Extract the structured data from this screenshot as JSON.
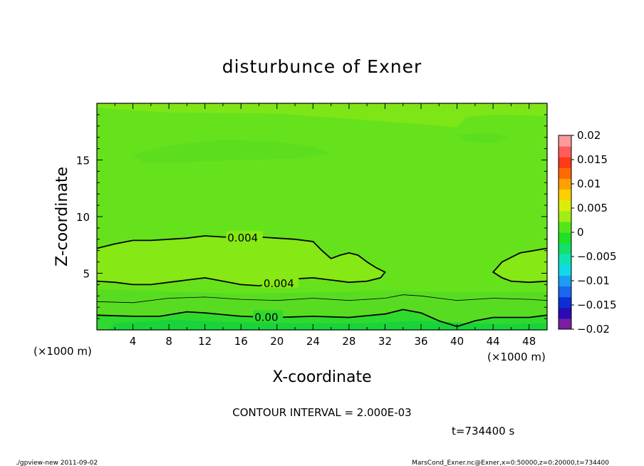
{
  "chart_data": {
    "type": "heatmap",
    "title": "disturbunce of Exner",
    "xlabel": "X-coordinate",
    "ylabel": "Z-coordinate",
    "x_unit": "(×1000 m)",
    "y_unit": "(×1000 m)",
    "xlim": [
      0,
      50
    ],
    "ylim": [
      0,
      20
    ],
    "x_ticks": [
      4,
      8,
      12,
      16,
      20,
      24,
      28,
      32,
      36,
      40,
      44,
      48
    ],
    "y_ticks": [
      5,
      10,
      15
    ],
    "contour_interval_text": "CONTOUR INTERVAL = 2.000E-03",
    "time_text": "t=734400 s",
    "colorbar": {
      "ticks": [
        "0.02",
        "0.015",
        "0.01",
        "0.005",
        "0",
        "−0.005",
        "−0.01",
        "−0.015",
        "−0.02"
      ],
      "range": [
        -0.02,
        0.02
      ],
      "colors": [
        "#7a1fa2",
        "#2a0bb4",
        "#0a2fd4",
        "#1a66ef",
        "#1a9ef3",
        "#12d8ea",
        "#0fe4b0",
        "#12e06a",
        "#1fe022",
        "#55e61a",
        "#a0ee12",
        "#d8ee0a",
        "#ffd000",
        "#ffa000",
        "#ff6a00",
        "#ff3a1a",
        "#ff5c5c",
        "#ff9a9a"
      ]
    },
    "contour_labels": [
      {
        "text": "0.004",
        "x": 14.5,
        "z": 8.1
      },
      {
        "text": "0.004",
        "x": 18.5,
        "z": 4.1
      },
      {
        "text": "0.00",
        "x": 17.5,
        "z": 1.1
      }
    ],
    "contours": [
      {
        "level": 0.004,
        "points": [
          [
            0,
            7.2
          ],
          [
            2,
            7.6
          ],
          [
            4,
            7.9
          ],
          [
            6,
            7.9
          ],
          [
            8,
            8.0
          ],
          [
            10,
            8.1
          ],
          [
            12,
            8.3
          ],
          [
            14,
            8.2
          ],
          [
            16,
            8.2
          ],
          [
            18,
            8.2
          ],
          [
            20,
            8.1
          ],
          [
            22,
            8.0
          ],
          [
            24,
            7.8
          ],
          [
            25,
            7.0
          ],
          [
            26,
            6.3
          ],
          [
            27,
            6.6
          ],
          [
            28,
            6.8
          ],
          [
            29,
            6.6
          ],
          [
            30,
            6.0
          ],
          [
            31,
            5.5
          ],
          [
            32,
            5.1
          ],
          [
            31.5,
            4.6
          ],
          [
            30,
            4.3
          ],
          [
            28,
            4.2
          ],
          [
            26,
            4.4
          ],
          [
            24,
            4.6
          ],
          [
            22,
            4.5
          ],
          [
            20,
            4.1
          ],
          [
            18,
            3.9
          ],
          [
            16,
            4.0
          ],
          [
            14,
            4.3
          ],
          [
            12,
            4.6
          ],
          [
            10,
            4.4
          ],
          [
            8,
            4.2
          ],
          [
            6,
            4.0
          ],
          [
            4,
            4.0
          ],
          [
            2,
            4.2
          ],
          [
            0,
            4.3
          ]
        ]
      },
      {
        "level": 0.004,
        "points": [
          [
            50,
            7.2
          ],
          [
            48.5,
            7.0
          ],
          [
            47,
            6.8
          ],
          [
            45,
            6.0
          ],
          [
            44,
            5.1
          ],
          [
            45,
            4.6
          ],
          [
            46,
            4.3
          ],
          [
            48,
            4.2
          ],
          [
            50,
            4.3
          ]
        ]
      },
      {
        "level": 0.002,
        "points": [
          [
            0,
            2.5
          ],
          [
            4,
            2.4
          ],
          [
            8,
            2.8
          ],
          [
            12,
            2.9
          ],
          [
            16,
            2.7
          ],
          [
            20,
            2.6
          ],
          [
            24,
            2.8
          ],
          [
            28,
            2.6
          ],
          [
            32,
            2.8
          ],
          [
            34,
            3.1
          ],
          [
            36,
            3.0
          ],
          [
            40,
            2.6
          ],
          [
            44,
            2.8
          ],
          [
            48,
            2.7
          ],
          [
            50,
            2.6
          ]
        ]
      },
      {
        "level": 0.0,
        "points": [
          [
            0,
            1.3
          ],
          [
            4,
            1.2
          ],
          [
            7,
            1.2
          ],
          [
            10,
            1.6
          ],
          [
            12,
            1.5
          ],
          [
            16,
            1.2
          ],
          [
            20,
            1.1
          ],
          [
            24,
            1.2
          ],
          [
            28,
            1.1
          ],
          [
            32,
            1.4
          ],
          [
            34,
            1.8
          ],
          [
            36,
            1.5
          ],
          [
            38,
            0.8
          ],
          [
            40,
            0.3
          ],
          [
            42,
            0.8
          ],
          [
            44,
            1.1
          ],
          [
            48,
            1.1
          ],
          [
            50,
            1.3
          ]
        ]
      }
    ]
  },
  "footer": {
    "left": "./gpview-new   2011-09-02",
    "right": "MarsCond_Exner.nc@Exner,x=0:50000,z=0:20000,t=734400"
  }
}
